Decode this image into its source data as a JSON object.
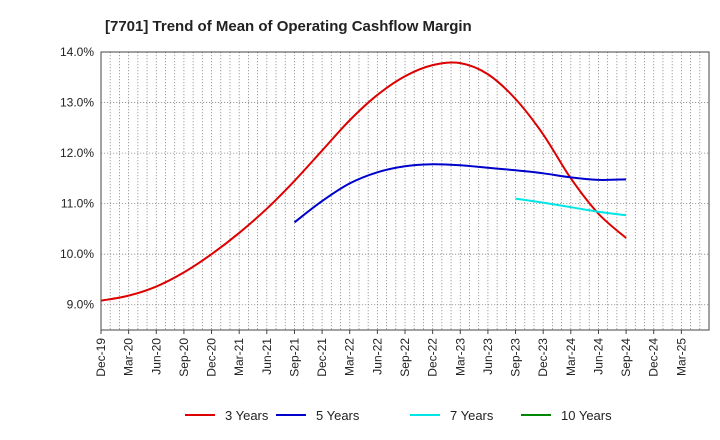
{
  "chart_data": {
    "type": "line",
    "title": "[7701]  Trend of Mean of Operating Cashflow Margin",
    "xlabel": "",
    "ylabel": "",
    "ylim": [
      8.5,
      14.0
    ],
    "yticks": [
      9.0,
      10.0,
      11.0,
      12.0,
      13.0,
      14.0
    ],
    "ytick_labels": [
      "9.0%",
      "10.0%",
      "11.0%",
      "12.0%",
      "13.0%",
      "14.0%"
    ],
    "x_ticks": [
      "Dec-19",
      "Mar-20",
      "Jun-20",
      "Sep-20",
      "Dec-20",
      "Mar-21",
      "Jun-21",
      "Sep-21",
      "Dec-21",
      "Mar-22",
      "Jun-22",
      "Sep-22",
      "Dec-22",
      "Mar-23",
      "Jun-23",
      "Sep-23",
      "Dec-23",
      "Mar-24",
      "Jun-24",
      "Sep-24",
      "Dec-24",
      "Mar-25"
    ],
    "grid": true,
    "legend_position": "bottom",
    "series": [
      {
        "name": "3 Years",
        "color": "#dd0000",
        "x": [
          "Dec-19",
          "Mar-20",
          "Jun-20",
          "Sep-20",
          "Dec-20",
          "Mar-21",
          "Jun-21",
          "Sep-21",
          "Dec-21",
          "Mar-22",
          "Jun-22",
          "Sep-22",
          "Dec-22",
          "Mar-23",
          "Jun-23",
          "Sep-23",
          "Dec-23",
          "Mar-24",
          "Jun-24",
          "Sep-24"
        ],
        "values": [
          9.08,
          9.18,
          9.36,
          9.64,
          10.0,
          10.42,
          10.9,
          11.45,
          12.05,
          12.65,
          13.15,
          13.52,
          13.74,
          13.78,
          13.56,
          13.07,
          12.37,
          11.5,
          10.8,
          10.32
        ]
      },
      {
        "name": "5 Years",
        "color": "#0000cc",
        "x": [
          "Sep-21",
          "Dec-21",
          "Mar-22",
          "Jun-22",
          "Sep-22",
          "Dec-22",
          "Mar-23",
          "Jun-23",
          "Sep-23",
          "Dec-23",
          "Mar-24",
          "Jun-24",
          "Sep-24"
        ],
        "values": [
          10.63,
          11.05,
          11.4,
          11.62,
          11.74,
          11.78,
          11.76,
          11.71,
          11.66,
          11.6,
          11.52,
          11.47,
          11.48
        ]
      },
      {
        "name": "7 Years",
        "color": "#00e5e5",
        "x": [
          "Sep-23",
          "Dec-23",
          "Mar-24",
          "Jun-24",
          "Sep-24"
        ],
        "values": [
          11.1,
          11.02,
          10.93,
          10.84,
          10.77
        ]
      },
      {
        "name": "10 Years",
        "color": "#008800",
        "x": [],
        "values": []
      }
    ]
  }
}
